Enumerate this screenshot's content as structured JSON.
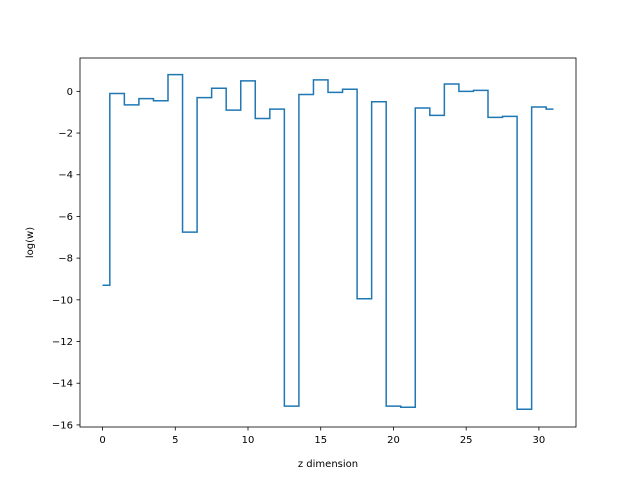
{
  "chart_data": {
    "type": "line",
    "drawstyle": "steps-mid",
    "xlabel": "z dimension",
    "ylabel": "log(w)",
    "xlim": [
      -1.55,
      32.55
    ],
    "ylim": [
      -16.1,
      1.6
    ],
    "xticks": [
      0,
      5,
      10,
      15,
      20,
      25,
      30
    ],
    "yticks": [
      0,
      -2,
      -4,
      -6,
      -8,
      -10,
      -12,
      -14,
      -16
    ],
    "grid": false,
    "color": "#1f77b4",
    "series": [
      {
        "x": [
          0,
          1,
          2,
          3,
          4,
          5,
          6,
          7,
          8,
          9,
          10,
          11,
          12,
          13,
          14,
          15,
          16,
          17,
          18,
          19,
          20,
          21,
          22,
          23,
          24,
          25,
          26,
          27,
          28,
          29,
          30,
          31
        ],
        "values": [
          -9.3,
          -0.1,
          -0.65,
          -0.35,
          -0.45,
          0.8,
          -6.75,
          -0.3,
          0.15,
          -0.9,
          0.5,
          -1.3,
          -0.85,
          -15.1,
          -0.15,
          0.55,
          -0.05,
          0.1,
          -9.95,
          -0.5,
          -15.1,
          -15.15,
          -0.8,
          -1.15,
          0.35,
          0.0,
          0.05,
          -1.25,
          -1.2,
          -15.25,
          -0.75,
          -0.85
        ]
      }
    ]
  }
}
